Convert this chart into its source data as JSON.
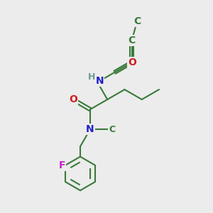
{
  "bg_color": "#ececec",
  "atom_colors": {
    "C": "#3a7a3a",
    "N": "#2020cc",
    "O": "#cc2020",
    "F": "#cc20cc",
    "H": "#6a9a9a"
  },
  "bond_color": "#3a7a3a",
  "fig_size": [
    3.0,
    3.0
  ],
  "dpi": 100,
  "lw": 1.5,
  "fs": 10
}
